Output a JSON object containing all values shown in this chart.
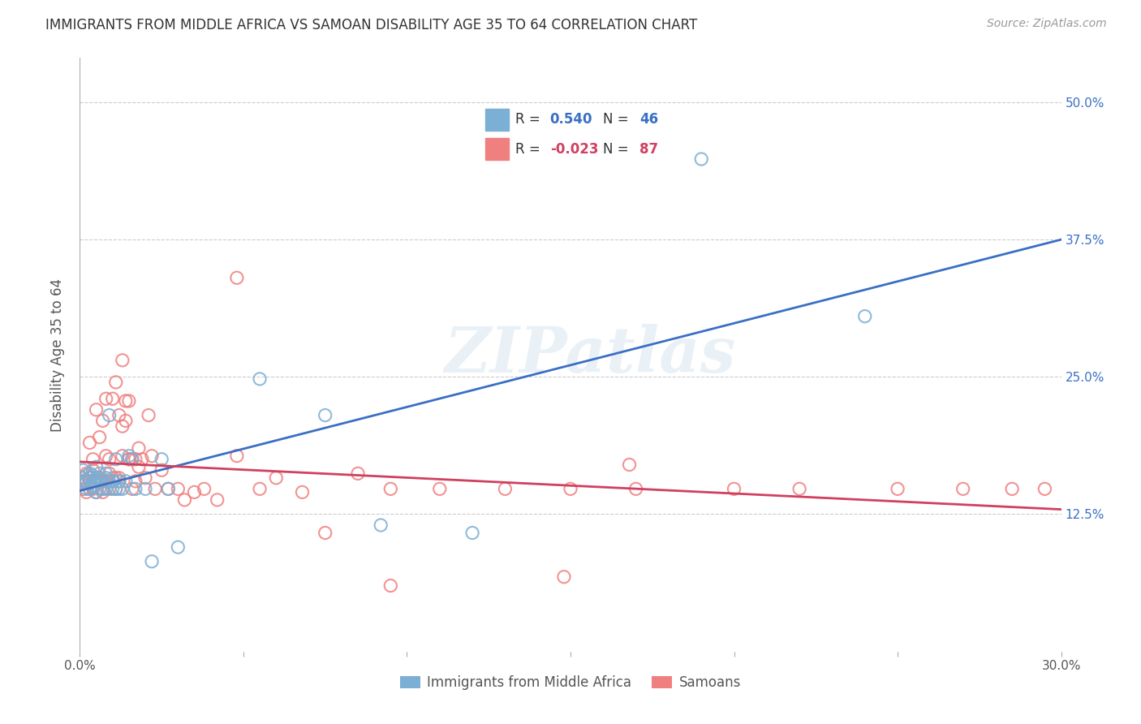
{
  "title": "IMMIGRANTS FROM MIDDLE AFRICA VS SAMOAN DISABILITY AGE 35 TO 64 CORRELATION CHART",
  "source": "Source: ZipAtlas.com",
  "xlabel_ticks": [
    "0.0%",
    "",
    "",
    "",
    "",
    "",
    "",
    "",
    "",
    "",
    "",
    "",
    "",
    "",
    "",
    "",
    "",
    "",
    "",
    "",
    "",
    "",
    "",
    "",
    "",
    "",
    "",
    "",
    "",
    "",
    "30.0%"
  ],
  "ylabel_ticks": [
    "12.5%",
    "25.0%",
    "37.5%",
    "50.0%"
  ],
  "ylabel_label": "Disability Age 35 to 64",
  "legend_label1": "Immigrants from Middle Africa",
  "legend_label2": "Samoans",
  "r1": 0.54,
  "n1": 46,
  "r2": -0.023,
  "n2": 87,
  "color1": "#7bafd4",
  "color2": "#f08080",
  "line_color1": "#3a6fc4",
  "line_color2": "#d04060",
  "background_color": "#ffffff",
  "grid_color": "#cccccc",
  "xlim": [
    0.0,
    0.3
  ],
  "ylim": [
    0.0,
    0.54
  ],
  "blue_scatter_x": [
    0.001,
    0.001,
    0.002,
    0.002,
    0.002,
    0.003,
    0.003,
    0.003,
    0.004,
    0.004,
    0.004,
    0.005,
    0.005,
    0.005,
    0.006,
    0.006,
    0.006,
    0.007,
    0.007,
    0.008,
    0.008,
    0.008,
    0.009,
    0.009,
    0.01,
    0.01,
    0.011,
    0.011,
    0.012,
    0.012,
    0.013,
    0.014,
    0.015,
    0.016,
    0.017,
    0.02,
    0.022,
    0.025,
    0.027,
    0.03,
    0.055,
    0.075,
    0.092,
    0.12,
    0.19,
    0.24
  ],
  "blue_scatter_y": [
    0.155,
    0.165,
    0.148,
    0.16,
    0.155,
    0.158,
    0.162,
    0.148,
    0.155,
    0.15,
    0.16,
    0.145,
    0.155,
    0.168,
    0.148,
    0.158,
    0.162,
    0.155,
    0.148,
    0.158,
    0.162,
    0.148,
    0.215,
    0.155,
    0.155,
    0.148,
    0.175,
    0.148,
    0.155,
    0.148,
    0.148,
    0.155,
    0.178,
    0.175,
    0.148,
    0.148,
    0.082,
    0.175,
    0.148,
    0.095,
    0.248,
    0.215,
    0.115,
    0.108,
    0.448,
    0.305
  ],
  "pink_scatter_x": [
    0.001,
    0.001,
    0.001,
    0.002,
    0.002,
    0.002,
    0.003,
    0.003,
    0.003,
    0.003,
    0.004,
    0.004,
    0.004,
    0.004,
    0.005,
    0.005,
    0.005,
    0.005,
    0.006,
    0.006,
    0.006,
    0.007,
    0.007,
    0.007,
    0.007,
    0.008,
    0.008,
    0.008,
    0.009,
    0.009,
    0.009,
    0.01,
    0.01,
    0.01,
    0.011,
    0.011,
    0.011,
    0.012,
    0.012,
    0.012,
    0.013,
    0.013,
    0.013,
    0.014,
    0.014,
    0.015,
    0.015,
    0.015,
    0.016,
    0.016,
    0.017,
    0.017,
    0.018,
    0.018,
    0.019,
    0.02,
    0.021,
    0.022,
    0.023,
    0.025,
    0.027,
    0.03,
    0.032,
    0.035,
    0.038,
    0.042,
    0.048,
    0.055,
    0.06,
    0.068,
    0.075,
    0.085,
    0.095,
    0.11,
    0.13,
    0.15,
    0.17,
    0.2,
    0.22,
    0.25,
    0.27,
    0.285,
    0.295,
    0.168,
    0.048,
    0.095,
    0.148
  ],
  "pink_scatter_y": [
    0.155,
    0.158,
    0.148,
    0.155,
    0.145,
    0.162,
    0.158,
    0.148,
    0.19,
    0.155,
    0.155,
    0.175,
    0.148,
    0.165,
    0.145,
    0.22,
    0.158,
    0.155,
    0.155,
    0.195,
    0.158,
    0.145,
    0.21,
    0.155,
    0.148,
    0.155,
    0.178,
    0.23,
    0.162,
    0.175,
    0.148,
    0.158,
    0.23,
    0.155,
    0.158,
    0.245,
    0.148,
    0.155,
    0.215,
    0.158,
    0.178,
    0.265,
    0.205,
    0.21,
    0.228,
    0.175,
    0.228,
    0.175,
    0.148,
    0.175,
    0.155,
    0.175,
    0.168,
    0.185,
    0.175,
    0.158,
    0.215,
    0.178,
    0.148,
    0.165,
    0.148,
    0.148,
    0.138,
    0.145,
    0.148,
    0.138,
    0.34,
    0.148,
    0.158,
    0.145,
    0.108,
    0.162,
    0.148,
    0.148,
    0.148,
    0.148,
    0.148,
    0.148,
    0.148,
    0.148,
    0.148,
    0.148,
    0.148,
    0.17,
    0.178,
    0.06,
    0.068
  ]
}
